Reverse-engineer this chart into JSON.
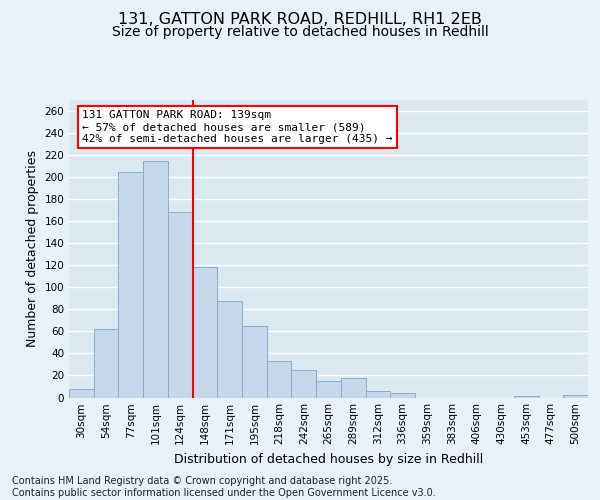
{
  "title1": "131, GATTON PARK ROAD, REDHILL, RH1 2EB",
  "title2": "Size of property relative to detached houses in Redhill",
  "xlabel": "Distribution of detached houses by size in Redhill",
  "ylabel": "Number of detached properties",
  "bar_color": "#c8d8eb",
  "bar_edge_color": "#8ab0cc",
  "background_color": "#dce8f0",
  "grid_color": "#ffffff",
  "fig_background": "#e8f0f8",
  "categories": [
    "30sqm",
    "54sqm",
    "77sqm",
    "101sqm",
    "124sqm",
    "148sqm",
    "171sqm",
    "195sqm",
    "218sqm",
    "242sqm",
    "265sqm",
    "289sqm",
    "312sqm",
    "336sqm",
    "359sqm",
    "383sqm",
    "406sqm",
    "430sqm",
    "453sqm",
    "477sqm",
    "500sqm"
  ],
  "values": [
    8,
    62,
    205,
    215,
    168,
    118,
    88,
    65,
    33,
    25,
    15,
    18,
    6,
    4,
    0,
    0,
    0,
    0,
    1,
    0,
    2
  ],
  "ylim": [
    0,
    270
  ],
  "yticks": [
    0,
    20,
    40,
    60,
    80,
    100,
    120,
    140,
    160,
    180,
    200,
    220,
    240,
    260
  ],
  "vline_after_index": 4,
  "annotation_text": "131 GATTON PARK ROAD: 139sqm\n← 57% of detached houses are smaller (589)\n42% of semi-detached houses are larger (435) →",
  "footer_text": "Contains HM Land Registry data © Crown copyright and database right 2025.\nContains public sector information licensed under the Open Government Licence v3.0.",
  "title1_fontsize": 11.5,
  "title2_fontsize": 10,
  "axis_label_fontsize": 9,
  "tick_fontsize": 7.5,
  "annotation_fontsize": 8,
  "footer_fontsize": 7
}
